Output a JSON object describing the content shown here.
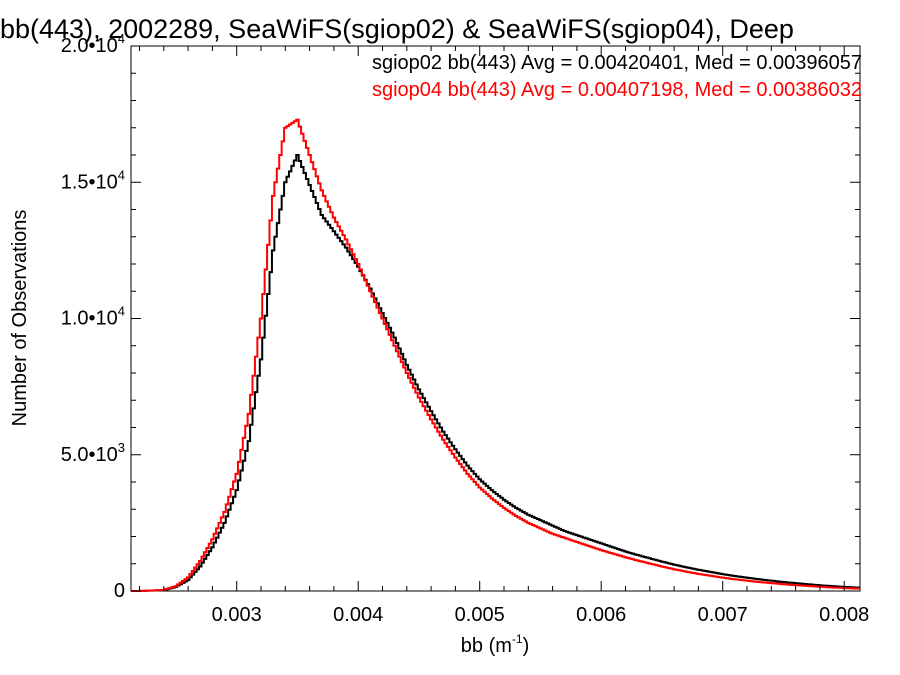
{
  "chart_data": {
    "type": "line",
    "title": "bb(443), 2002289, SeaWiFS(sgiop02) & SeaWiFS(sgiop04), Deep",
    "xlabel": "bb (m",
    "xlabel_sup": "-1",
    "xlabel_end": ")",
    "ylabel": "Number of Observations",
    "xlim": [
      0.00213,
      0.00813
    ],
    "ylim": [
      0,
      20000
    ],
    "x_ticks": [
      {
        "value": 0.003,
        "label": "0.003"
      },
      {
        "value": 0.004,
        "label": "0.004"
      },
      {
        "value": 0.005,
        "label": "0.005"
      },
      {
        "value": 0.006,
        "label": "0.006"
      },
      {
        "value": 0.007,
        "label": "0.007"
      },
      {
        "value": 0.008,
        "label": "0.008"
      }
    ],
    "y_ticks": [
      {
        "value": 0,
        "mant": "0",
        "exp": ""
      },
      {
        "value": 5000,
        "mant": "5.0•10",
        "exp": "3"
      },
      {
        "value": 10000,
        "mant": "1.0•10",
        "exp": "4"
      },
      {
        "value": 15000,
        "mant": "1.5•10",
        "exp": "4"
      },
      {
        "value": 20000,
        "mant": "2.0•10",
        "exp": "4"
      }
    ],
    "grid": false,
    "legend_position": "top-right",
    "series": [
      {
        "name": "sgiop02 bb(443) Avg = 0.00420401, Med = 0.00396057",
        "color": "#000000",
        "x": [
          0.0024,
          0.0025,
          0.0026,
          0.0027,
          0.0028,
          0.0029,
          0.003,
          0.0031,
          0.0032,
          0.0033,
          0.0034,
          0.0035,
          0.0036,
          0.0037,
          0.0038,
          0.0039,
          0.004,
          0.0041,
          0.0042,
          0.0043,
          0.0044,
          0.0045,
          0.0046,
          0.0047,
          0.0048,
          0.0049,
          0.005,
          0.0051,
          0.0052,
          0.0053,
          0.0054,
          0.0055,
          0.0056,
          0.0057,
          0.0058,
          0.0059,
          0.006,
          0.0061,
          0.0062,
          0.0063,
          0.0064,
          0.0065,
          0.0066,
          0.0067,
          0.0068,
          0.0069,
          0.007,
          0.0071,
          0.0072,
          0.0073,
          0.0074,
          0.0075,
          0.0076,
          0.0077,
          0.0078,
          0.0079,
          0.008,
          0.0081
        ],
        "y": [
          30,
          150,
          400,
          900,
          1600,
          2500,
          3700,
          5500,
          8500,
          12500,
          15000,
          16000,
          14900,
          13800,
          13200,
          12600,
          11900,
          11100,
          10200,
          9300,
          8300,
          7400,
          6600,
          5850,
          5200,
          4600,
          4100,
          3700,
          3350,
          3050,
          2800,
          2600,
          2400,
          2200,
          2050,
          1900,
          1750,
          1600,
          1450,
          1320,
          1200,
          1080,
          970,
          870,
          780,
          700,
          620,
          550,
          490,
          430,
          380,
          330,
          290,
          250,
          210,
          180,
          150,
          130
        ]
      },
      {
        "name": "sgiop04 bb(443) Avg = 0.00407198, Med = 0.00386032",
        "color": "#ff0000",
        "x": [
          0.0024,
          0.0025,
          0.0026,
          0.0027,
          0.0028,
          0.0029,
          0.003,
          0.0031,
          0.0032,
          0.0033,
          0.0034,
          0.0035,
          0.0036,
          0.0037,
          0.0038,
          0.0039,
          0.004,
          0.0041,
          0.0042,
          0.0043,
          0.0044,
          0.0045,
          0.0046,
          0.0047,
          0.0048,
          0.0049,
          0.005,
          0.0051,
          0.0052,
          0.0053,
          0.0054,
          0.0055,
          0.0056,
          0.0057,
          0.0058,
          0.0059,
          0.006,
          0.0061,
          0.0062,
          0.0063,
          0.0064,
          0.0065,
          0.0066,
          0.0067,
          0.0068,
          0.0069,
          0.007,
          0.0071,
          0.0072,
          0.0073,
          0.0074,
          0.0075,
          0.0076,
          0.0077,
          0.0078,
          0.0079,
          0.008,
          0.0081
        ],
        "y": [
          40,
          180,
          500,
          1100,
          1900,
          2900,
          4300,
          6500,
          10000,
          14500,
          17000,
          17300,
          16000,
          14700,
          13700,
          12900,
          12000,
          11000,
          10000,
          9000,
          8000,
          7100,
          6300,
          5550,
          4900,
          4300,
          3800,
          3400,
          3050,
          2750,
          2500,
          2300,
          2100,
          1950,
          1800,
          1650,
          1500,
          1370,
          1240,
          1120,
          1010,
          900,
          800,
          710,
          630,
          560,
          490,
          430,
          380,
          330,
          290,
          250,
          215,
          185,
          155,
          130,
          110,
          90
        ]
      }
    ]
  }
}
